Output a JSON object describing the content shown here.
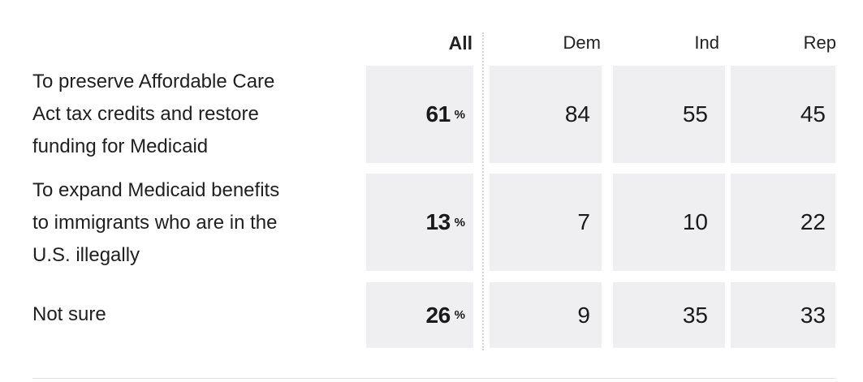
{
  "chart_data": {
    "type": "table",
    "columns": [
      "All",
      "Dem",
      "Ind",
      "Rep"
    ],
    "unit_symbol": "%",
    "rows": [
      {
        "label": "To preserve Affordable Care Act tax credits and restore funding for Medicaid",
        "label_lines": [
          "To preserve Affordable Care",
          "Act tax credits and restore",
          "funding for Medicaid"
        ],
        "values": [
          61,
          84,
          55,
          45
        ]
      },
      {
        "label": "To expand Medicaid benefits to immigrants who are in the U.S. illegally",
        "label_lines": [
          "To expand Medicaid benefits",
          "to immigrants who are in the",
          "U.S. illegally"
        ],
        "values": [
          13,
          7,
          10,
          22
        ]
      },
      {
        "label": "Not sure",
        "label_lines": [
          "Not sure"
        ],
        "values": [
          26,
          9,
          35,
          33
        ]
      }
    ]
  }
}
